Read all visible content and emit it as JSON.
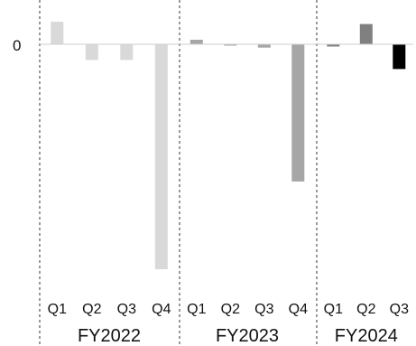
{
  "chart_data": {
    "type": "bar",
    "title": "",
    "xlabel": "",
    "ylabel": "",
    "y_tick_labels": [
      "0"
    ],
    "ylim": [
      -100,
      12
    ],
    "gridlines": false,
    "groups": [
      {
        "label": "FY2022",
        "color": "#d9d9d9",
        "categories": [
          "Q1",
          "Q2",
          "Q3",
          "Q4"
        ],
        "values": [
          10,
          -7,
          -7,
          -100
        ]
      },
      {
        "label": "FY2023",
        "color": "#a6a6a6",
        "categories": [
          "Q1",
          "Q2",
          "Q3",
          "Q4"
        ],
        "values": [
          2,
          -0.5,
          -1.5,
          -61
        ]
      },
      {
        "label": "FY2024",
        "colors": [
          "#808080",
          "#808080",
          "#000000"
        ],
        "categories": [
          "Q1",
          "Q2",
          "Q3"
        ],
        "values": [
          -1,
          9,
          -11
        ]
      }
    ]
  }
}
